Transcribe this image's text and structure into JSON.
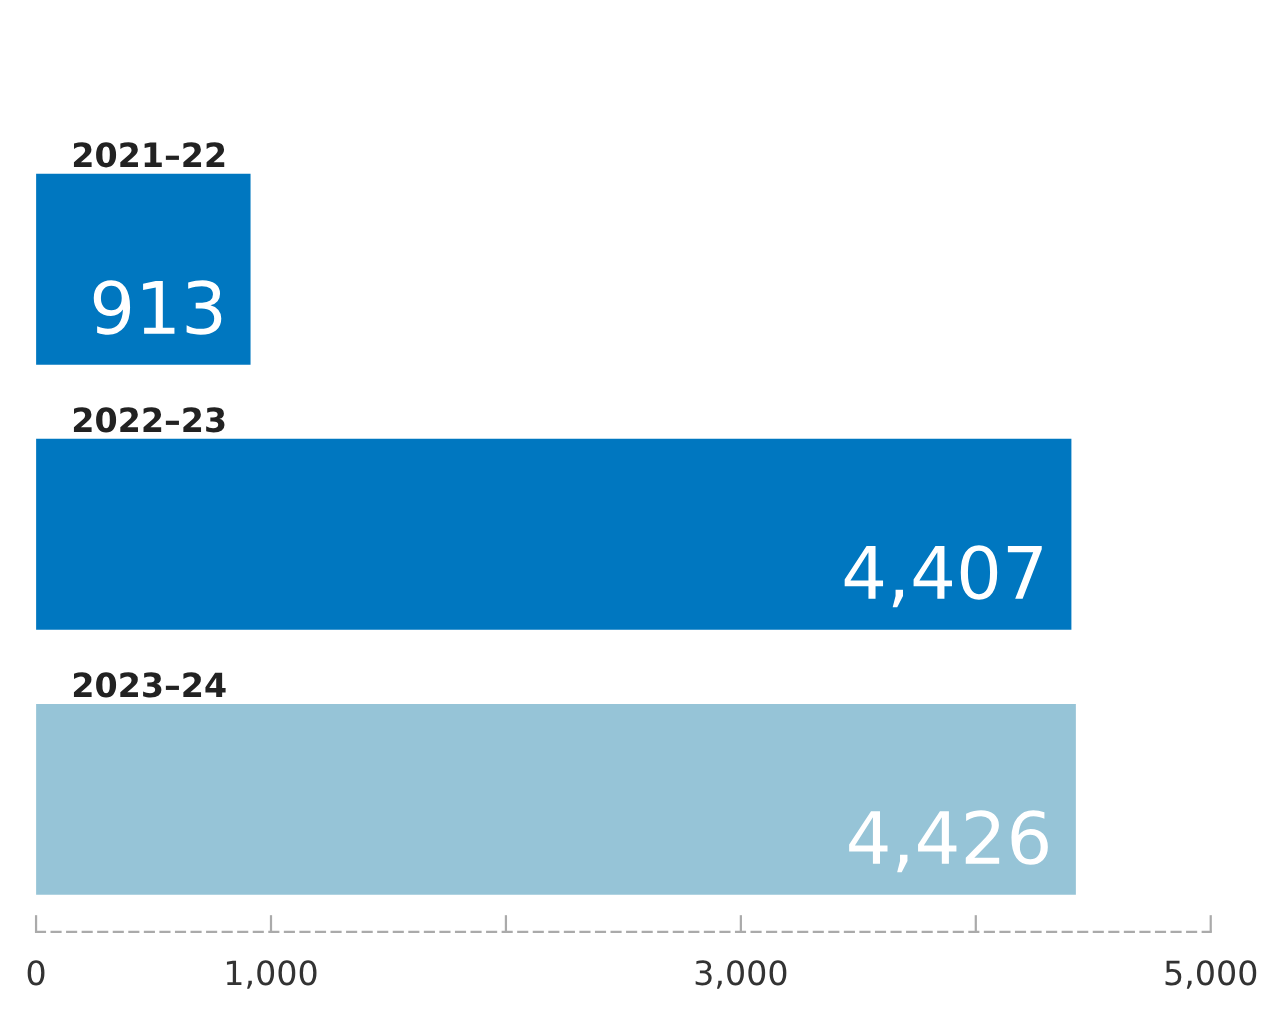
{
  "chart_data": {
    "type": "bar",
    "orientation": "horizontal",
    "categories": [
      "2021–22",
      "2022–23",
      "2023–24"
    ],
    "values": [
      913,
      4407,
      4426
    ],
    "colors": [
      "#0077c0",
      "#0077c0",
      "#96c4d7"
    ],
    "value_labels": [
      "913",
      "4,407",
      "4,426"
    ],
    "xlim": [
      0,
      5000
    ],
    "xticks": [
      0,
      {
        "value": 1000,
        "label": "1,000"
      },
      {
        "value": 2000,
        "label": null
      },
      {
        "value": 3000,
        "label": "3,000"
      },
      {
        "value": 4000,
        "label": null
      },
      {
        "value": 5000,
        "label": "5,000"
      }
    ],
    "grid": false,
    "legend": false
  }
}
